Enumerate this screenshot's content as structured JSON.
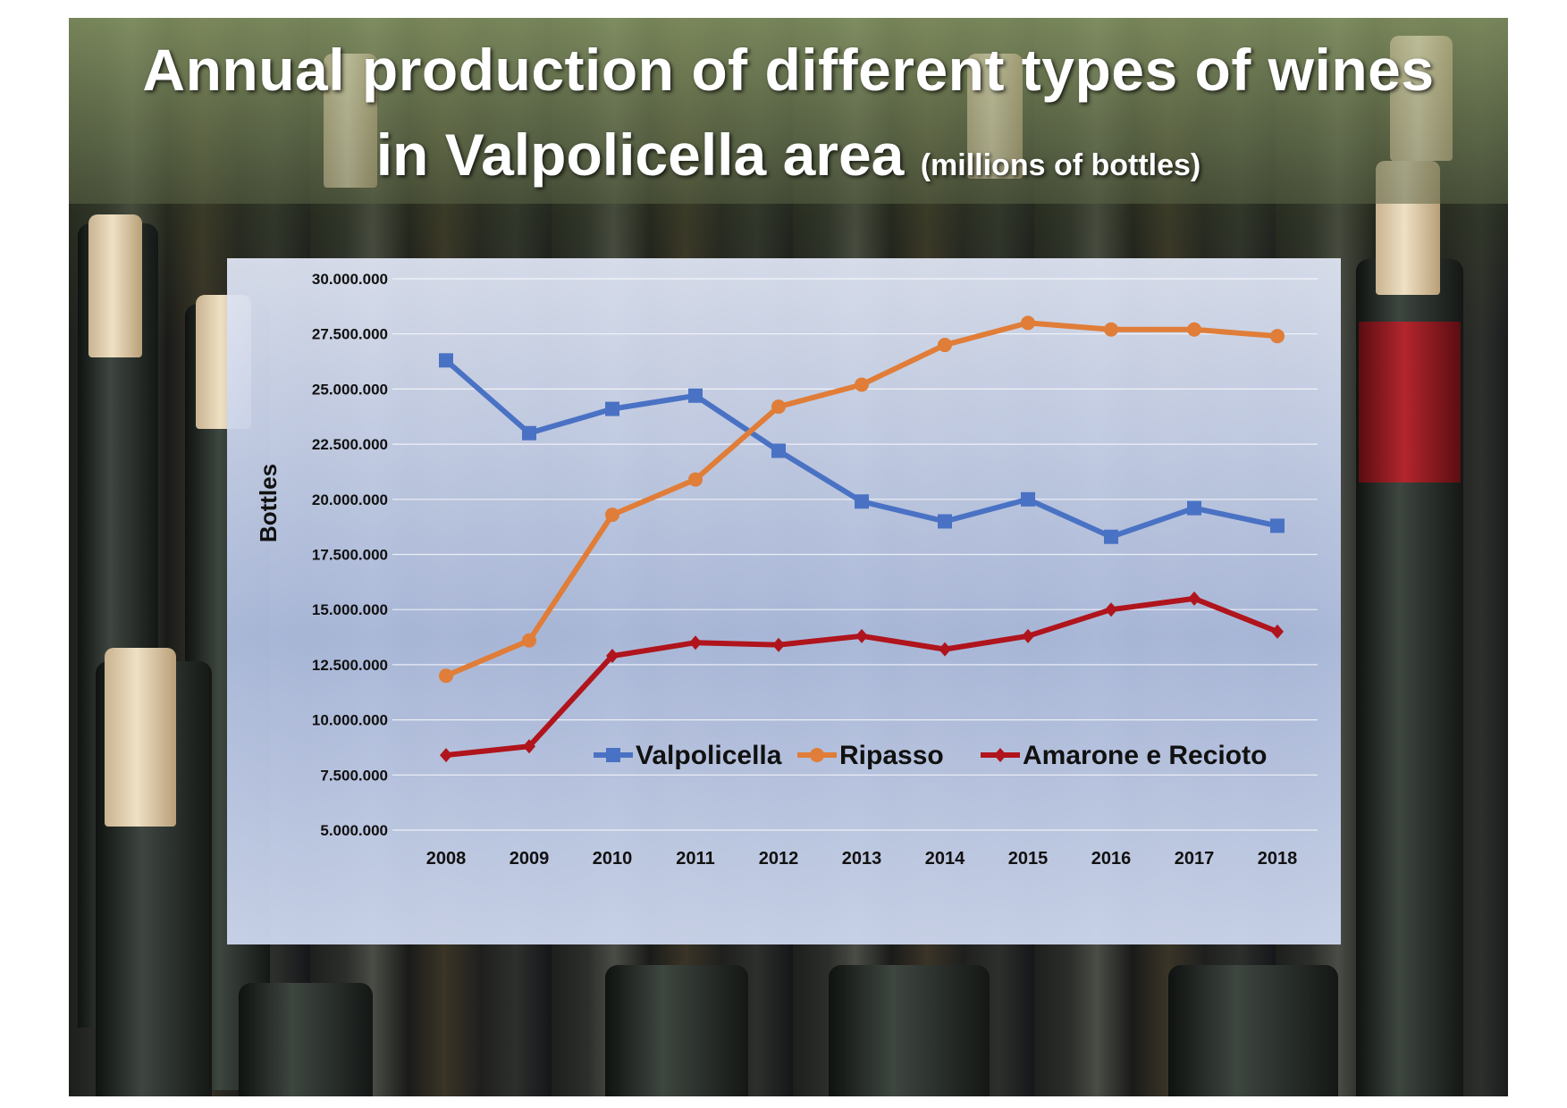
{
  "title": {
    "line1": "Annual production of  different types of wines",
    "line2_main": "in Valpolicella area",
    "line2_sub": "(millions of bottles)"
  },
  "chart_data": {
    "type": "line",
    "title": "Annual production of  different types of wines in Valpolicella area (millions of bottles)",
    "xlabel": "",
    "ylabel": "Bottles",
    "categories": [
      "2008",
      "2009",
      "2010",
      "2011",
      "2012",
      "2013",
      "2014",
      "2015",
      "2016",
      "2017",
      "2018"
    ],
    "ylim": [
      5000000,
      30000000
    ],
    "yticks": [
      5000000,
      7500000,
      10000000,
      12500000,
      15000000,
      17500000,
      20000000,
      22500000,
      25000000,
      27500000,
      30000000
    ],
    "ytick_labels": [
      "5.000.000",
      "7.500.000",
      "10.000.000",
      "12.500.000",
      "15.000.000",
      "17.500.000",
      "20.000.000",
      "22.500.000",
      "25.000.000",
      "27.500.000",
      "30.000.000"
    ],
    "grid": true,
    "legend_position": "bottom-inside",
    "series": [
      {
        "name": "Valpolicella",
        "color": "#4a72c4",
        "marker": "square",
        "values": [
          26300000,
          23000000,
          24100000,
          24700000,
          22200000,
          19900000,
          19000000,
          20000000,
          18300000,
          19600000,
          18800000
        ]
      },
      {
        "name": "Ripasso",
        "color": "#e07d38",
        "marker": "circle",
        "values": [
          12000000,
          13600000,
          19300000,
          20900000,
          24200000,
          25200000,
          27000000,
          28000000,
          27700000,
          27700000,
          27400000
        ]
      },
      {
        "name": "Amarone e Recioto",
        "color": "#b0141c",
        "marker": "diamond",
        "values": [
          8400000,
          8800000,
          12900000,
          13500000,
          13400000,
          13800000,
          13200000,
          13800000,
          15000000,
          15500000,
          14000000
        ]
      }
    ]
  }
}
